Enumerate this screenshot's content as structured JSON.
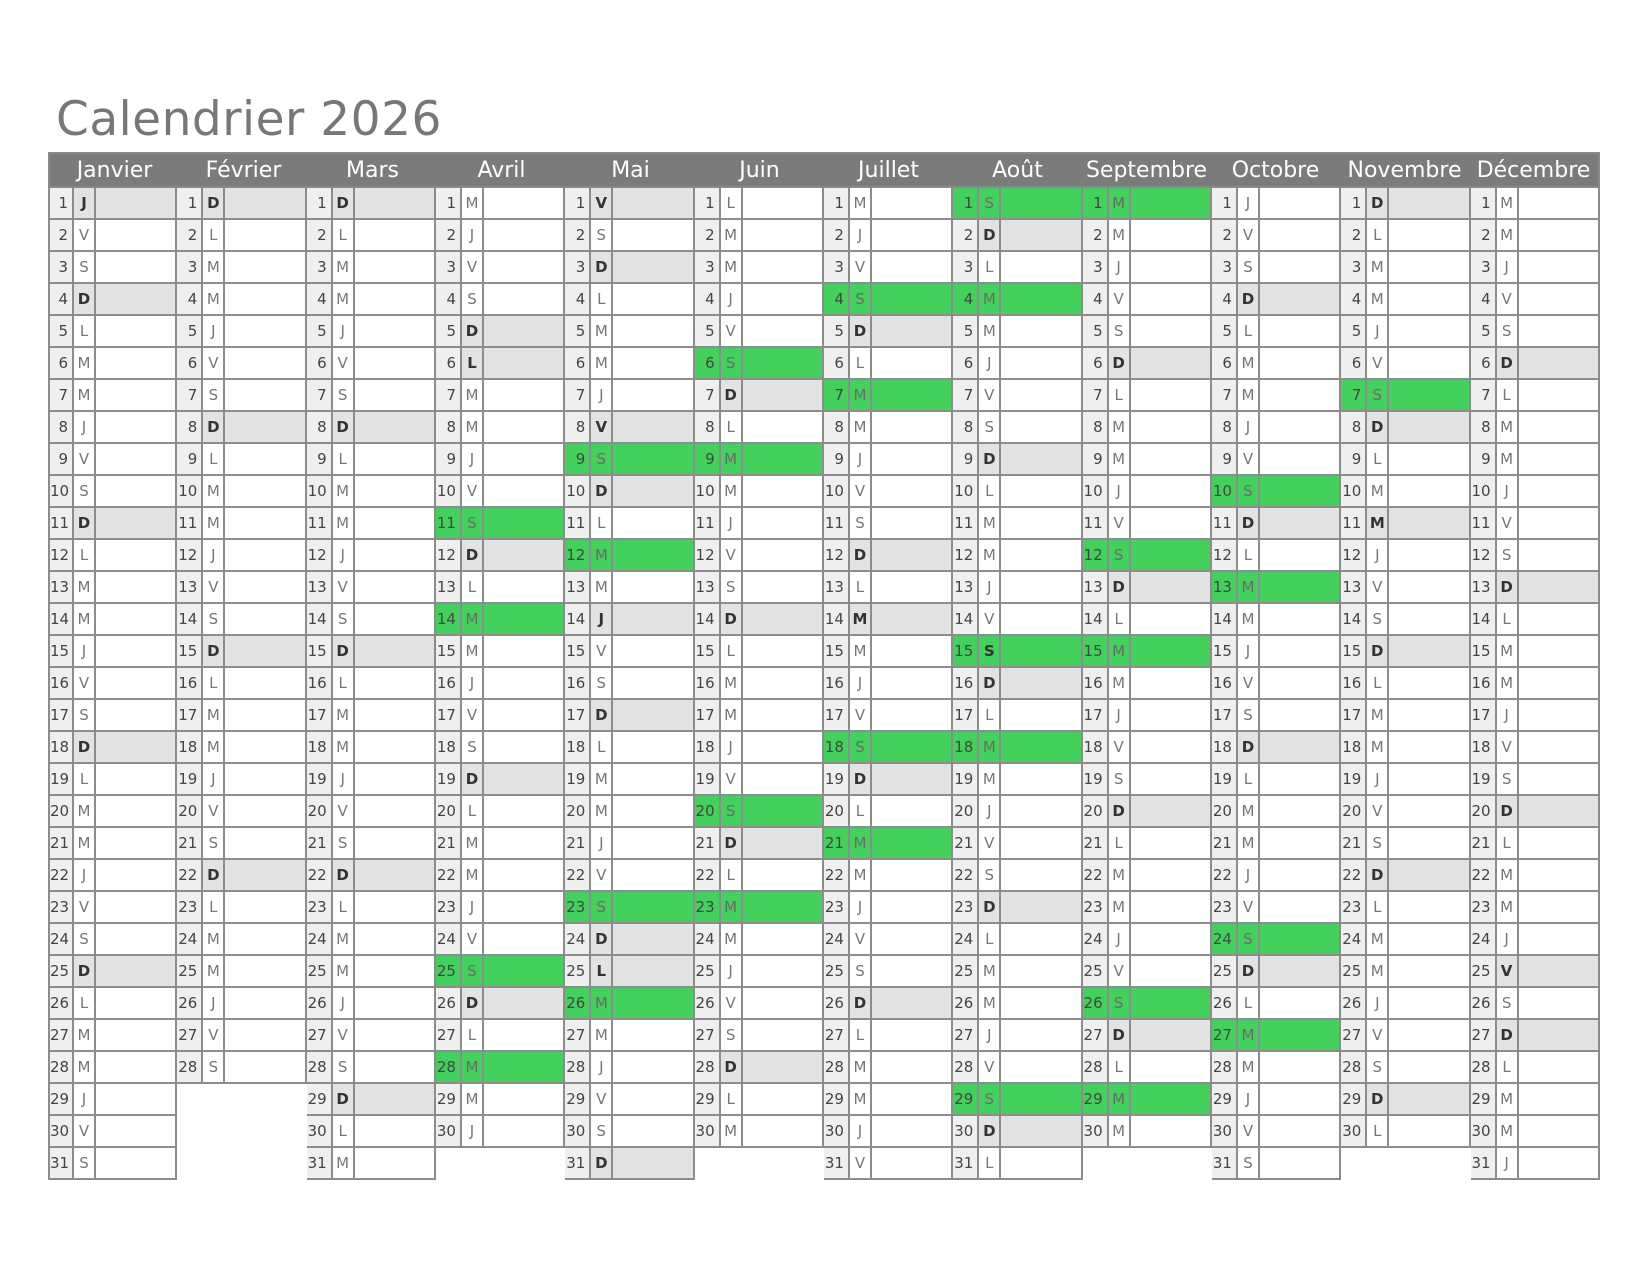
{
  "title": "Calendrier 2026",
  "colors": {
    "header": "#7b7b7b",
    "shaded": "#e3e3e3",
    "highlight": "#44d05c",
    "number_bg": "#efefef"
  },
  "months": [
    {
      "name": "Janvier",
      "weekdays": "JVSDLMMJVSDLMMJVSDLMMJVSDLMMJVS",
      "holidays": [
        1
      ],
      "highlighted": []
    },
    {
      "name": "Février",
      "weekdays": "DLMMJVSDLMMJVSDLMMJVSDLMMJVS",
      "holidays": [],
      "highlighted": []
    },
    {
      "name": "Mars",
      "weekdays": "DLMMJVSDLMMJVSDLMMJVSDLMMJVSDLM",
      "holidays": [],
      "highlighted": []
    },
    {
      "name": "Avril",
      "weekdays": "MJVSDLMMJVSDLMMJVSDLMMJVSDLMMJ",
      "holidays": [
        6
      ],
      "highlighted": [
        11,
        14,
        25,
        28
      ]
    },
    {
      "name": "Mai",
      "weekdays": "VSDLMMJVSDLMMJVSDLMMJVSDLMMJVSD",
      "holidays": [
        1,
        8,
        14,
        25
      ],
      "highlighted": [
        9,
        12,
        23,
        26
      ]
    },
    {
      "name": "Juin",
      "weekdays": "LMMJVSDLMMJVSDLMMJVSDLMMJVSDLM",
      "holidays": [],
      "highlighted": [
        6,
        9,
        20,
        23
      ]
    },
    {
      "name": "Juillet",
      "weekdays": "MJVSDLMMJVSDLMMJVSDLMMJVSDLMMJV",
      "holidays": [
        14
      ],
      "highlighted": [
        4,
        7,
        18,
        21
      ]
    },
    {
      "name": "Août",
      "weekdays": "SDLMMJVSDLMMJVSDLMMJVSDLMMJVSDL",
      "holidays": [
        15
      ],
      "highlighted": [
        1,
        4,
        15,
        18,
        29
      ]
    },
    {
      "name": "Septembre",
      "weekdays": "MMJVSDLMMJVSDLMMJVSDLMMJVSDLMM",
      "holidays": [],
      "highlighted": [
        1,
        12,
        15,
        26,
        29
      ]
    },
    {
      "name": "Octobre",
      "weekdays": "JVSDLMMJVSDLMMJVSDLMMJVSDLMMJVS",
      "holidays": [],
      "highlighted": [
        10,
        13,
        24,
        27
      ]
    },
    {
      "name": "Novembre",
      "weekdays": "DLMMJVSDLMMJVSDLMMJVSDLMMJVSDL",
      "holidays": [
        1,
        11
      ],
      "highlighted": [
        7
      ]
    },
    {
      "name": "Décembre",
      "weekdays": "MMJVSDLMMJVSDLMMJVSDLMMJVSDLMMJ",
      "holidays": [
        25
      ],
      "highlighted": []
    }
  ]
}
